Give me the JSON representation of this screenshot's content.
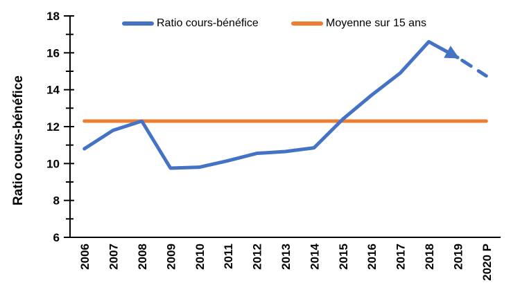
{
  "chart_data": {
    "type": "line",
    "title": "",
    "xlabel": "",
    "ylabel": "Ratio cours-bénéfice",
    "ylim": [
      6,
      18
    ],
    "y_major_tick_step": 2,
    "y_minor_tick_step": 1,
    "y_tick_labels": [
      "6",
      "8",
      "10",
      "12",
      "14",
      "16",
      "18"
    ],
    "grid": false,
    "legend_position": "top",
    "background_color": "#ffffff",
    "axis_color": "#000000",
    "categories": [
      "2006",
      "2007",
      "2008",
      "2009",
      "2010",
      "2011",
      "2012",
      "2013",
      "2014",
      "2015",
      "2016",
      "2017",
      "2018",
      "2019",
      "2020 P"
    ],
    "series": [
      {
        "name": "Ratio cours-bénéfice",
        "color": "#4472C4",
        "line_style": "solid with dashed projection segment after 2019 and arrowhead at 2019",
        "dashed_from_index": 13,
        "arrow_at_index": 13,
        "values": [
          10.8,
          11.8,
          12.3,
          9.75,
          9.8,
          10.15,
          10.55,
          10.65,
          10.85,
          12.4,
          13.7,
          14.9,
          16.6,
          15.75,
          14.75
        ]
      },
      {
        "name": "Moyenne sur 15 ans",
        "color": "#ED7D31",
        "line_style": "solid",
        "values": [
          12.3,
          12.3,
          12.3,
          12.3,
          12.3,
          12.3,
          12.3,
          12.3,
          12.3,
          12.3,
          12.3,
          12.3,
          12.3,
          12.3,
          12.3
        ]
      }
    ]
  }
}
